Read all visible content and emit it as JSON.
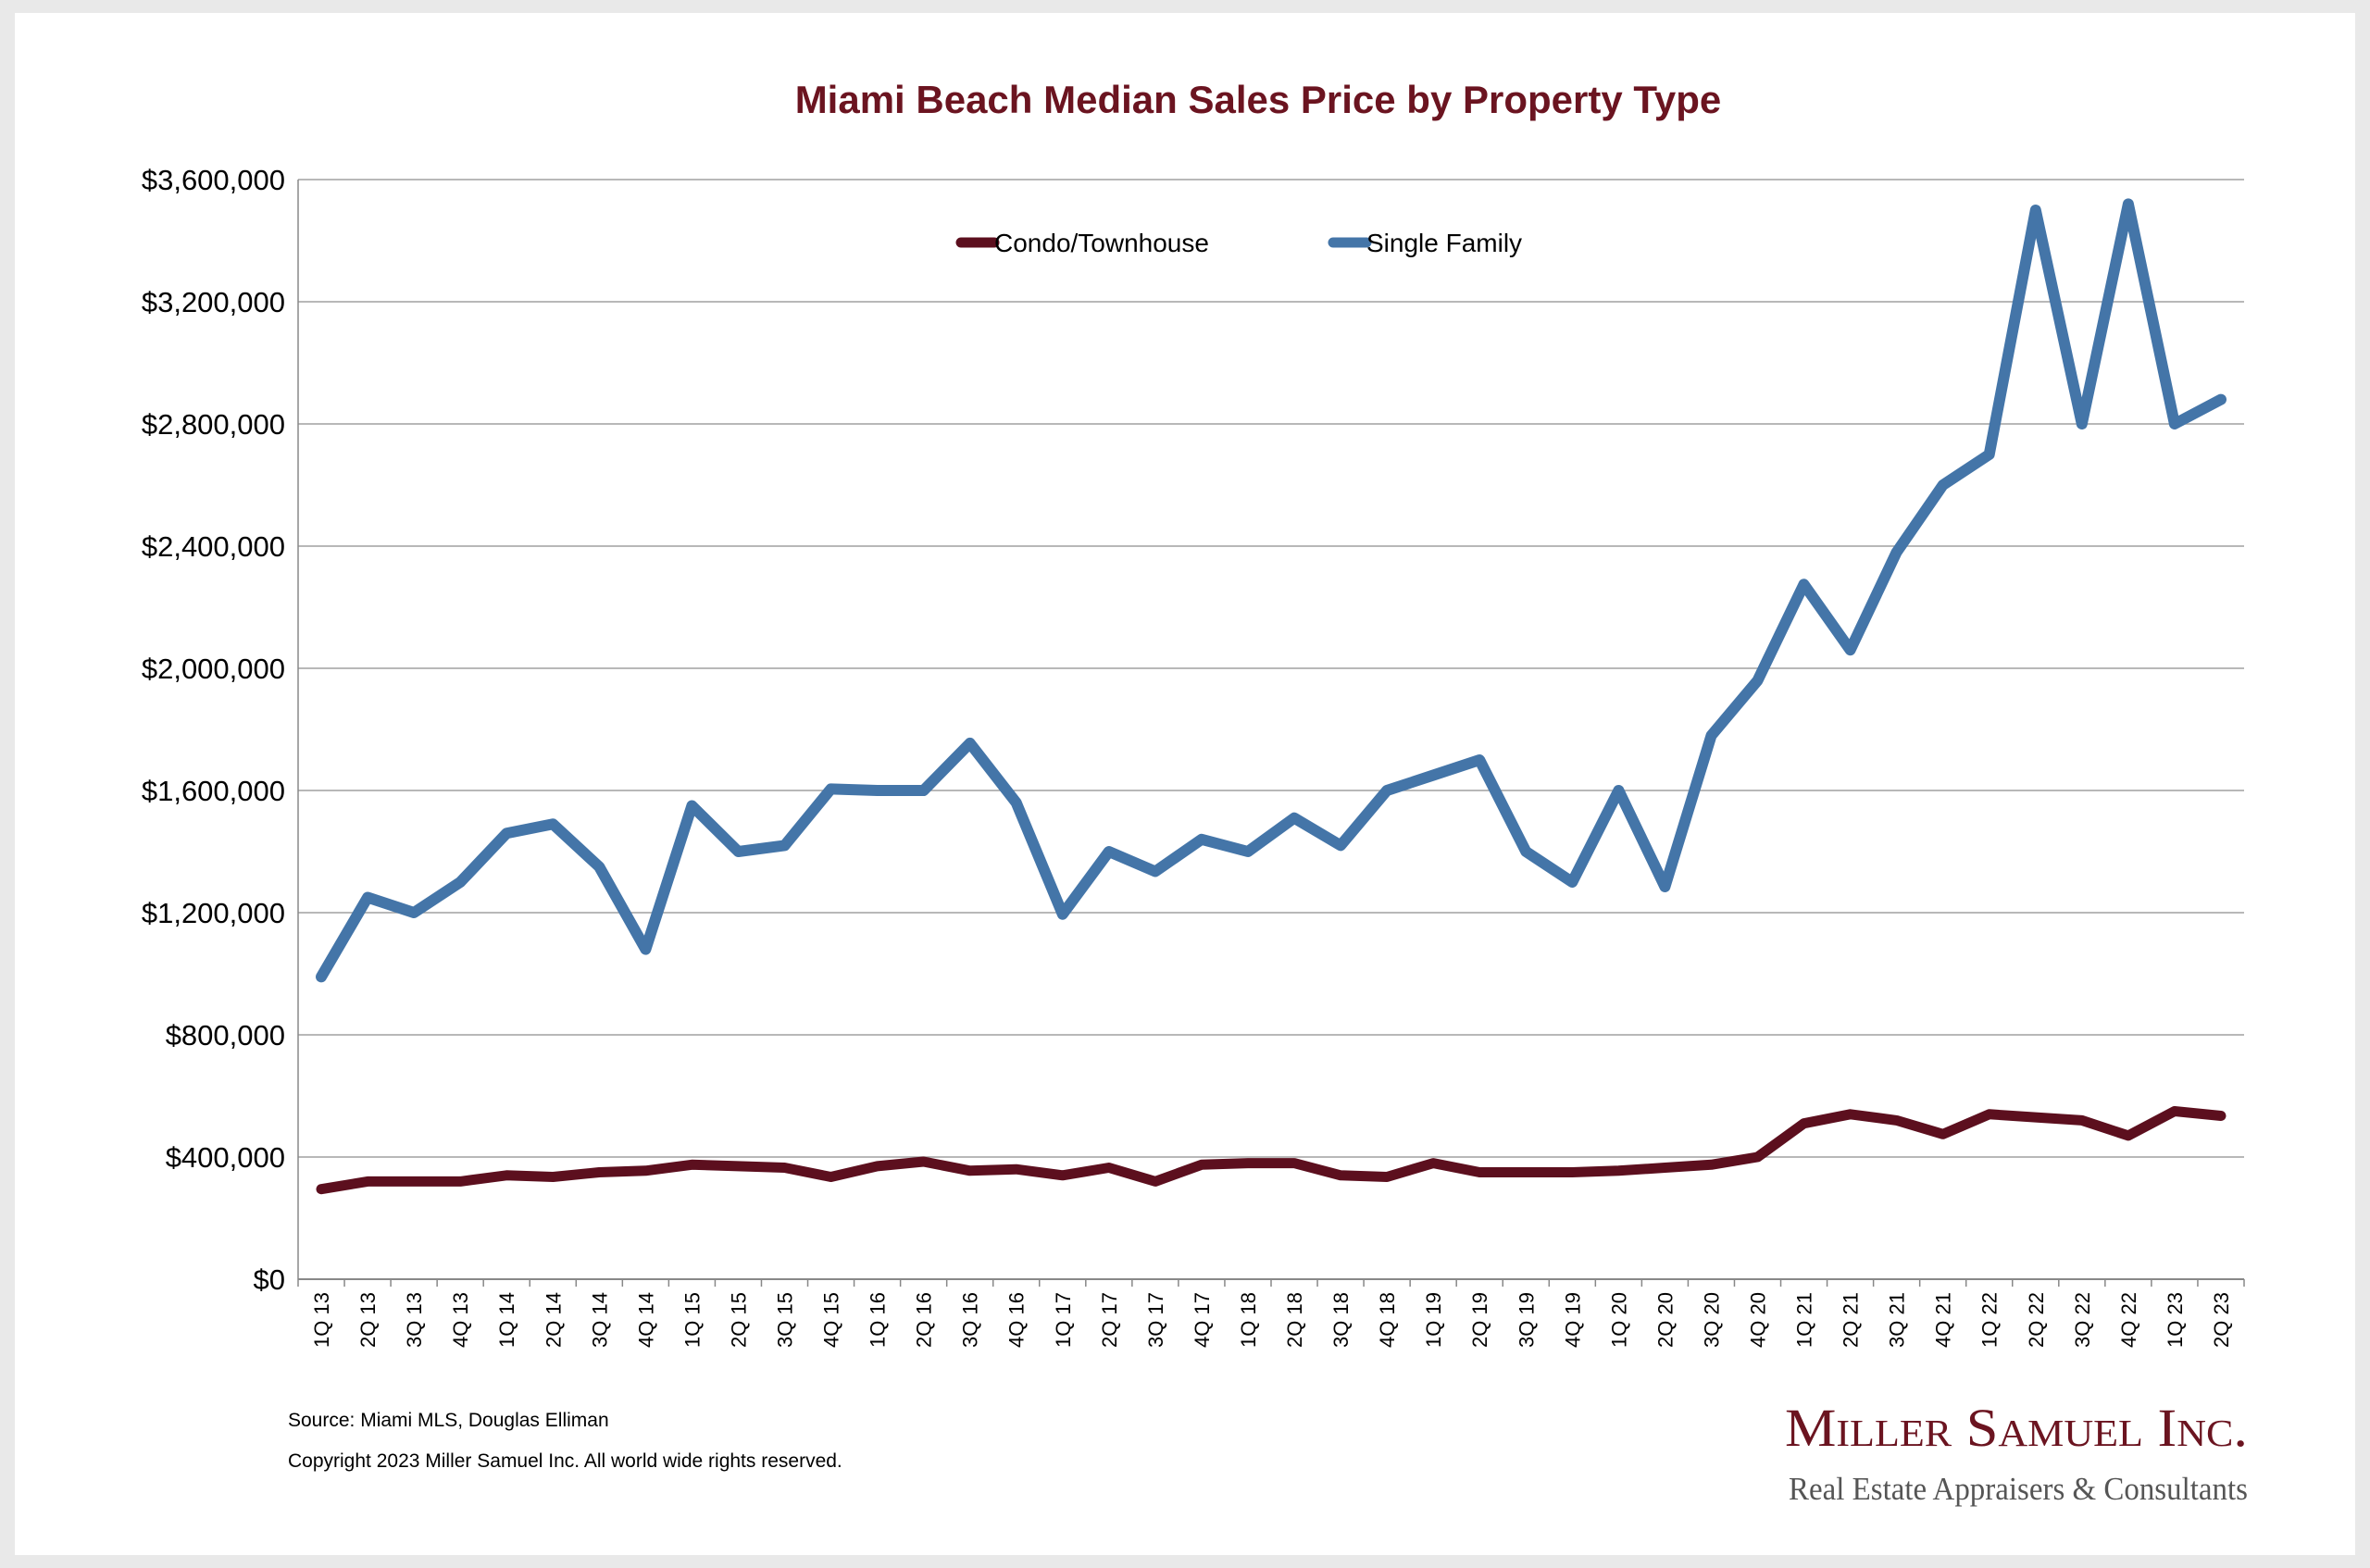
{
  "chart_data": {
    "type": "line",
    "title": "Miami Beach Median Sales Price by Property Type",
    "ylim": [
      0,
      3600000
    ],
    "yticks": [
      0,
      400000,
      800000,
      1200000,
      1600000,
      2000000,
      2400000,
      2800000,
      3200000,
      3600000
    ],
    "ytick_labels": [
      "$0",
      "$400,000",
      "$800,000",
      "$1,200,000",
      "$1,600,000",
      "$2,000,000",
      "$2,400,000",
      "$2,800,000",
      "$3,200,000",
      "$3,600,000"
    ],
    "grid": true,
    "legend_position": "top-center",
    "categories": [
      "1Q 13",
      "2Q 13",
      "3Q 13",
      "4Q 13",
      "1Q 14",
      "2Q 14",
      "3Q 14",
      "4Q 14",
      "1Q 15",
      "2Q 15",
      "3Q 15",
      "4Q 15",
      "1Q 16",
      "2Q 16",
      "3Q 16",
      "4Q 16",
      "1Q 17",
      "2Q 17",
      "3Q 17",
      "4Q 17",
      "1Q 18",
      "2Q 18",
      "3Q 18",
      "4Q 18",
      "1Q 19",
      "2Q 19",
      "3Q 19",
      "4Q 19",
      "1Q 20",
      "2Q 20",
      "3Q 20",
      "4Q 20",
      "1Q 21",
      "2Q 21",
      "3Q 21",
      "4Q 21",
      "1Q 22",
      "2Q 22",
      "3Q 22",
      "4Q 22",
      "1Q 23",
      "2Q 23"
    ],
    "series": [
      {
        "name": "Condo/Townhouse",
        "color": "#5c0f1e",
        "values": [
          295000,
          320000,
          320000,
          320000,
          340000,
          335000,
          350000,
          355000,
          375000,
          370000,
          365000,
          335000,
          370000,
          385000,
          355000,
          360000,
          340000,
          365000,
          320000,
          375000,
          380000,
          380000,
          340000,
          335000,
          380000,
          350000,
          350000,
          350000,
          355000,
          365000,
          375000,
          400000,
          510000,
          540000,
          520000,
          475000,
          540000,
          530000,
          520000,
          470000,
          550000,
          535000
        ]
      },
      {
        "name": "Single Family",
        "color": "#4475a8",
        "values": [
          990000,
          1250000,
          1200000,
          1300000,
          1460000,
          1490000,
          1350000,
          1080000,
          1550000,
          1400000,
          1420000,
          1605000,
          1600000,
          1600000,
          1755000,
          1560000,
          1195000,
          1400000,
          1335000,
          1440000,
          1400000,
          1510000,
          1420000,
          1600000,
          1650000,
          1700000,
          1400000,
          1300000,
          1600000,
          1285000,
          1780000,
          1960000,
          2275000,
          2060000,
          2380000,
          2600000,
          2700000,
          3500000,
          2800000,
          3520000,
          2800000,
          2880000
        ]
      }
    ]
  },
  "footer": {
    "source": "Source: Miami MLS, Douglas Elliman",
    "copyright": "Copyright 2023 Miller Samuel Inc.  All world wide rights reserved."
  },
  "brand": {
    "name": "Miller Samuel Inc.",
    "tagline": "Real Estate Appraisers & Consultants"
  }
}
